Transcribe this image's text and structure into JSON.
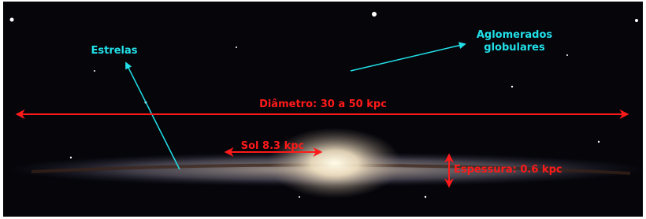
{
  "annotations": {
    "stars": "Estrelas",
    "clusters": [
      "Aglomerados",
      "globulares"
    ],
    "diameter": "Diâmetro: 30 a 50 kpc",
    "sun": "Sol 8.3 kpc",
    "thickness": "Espessura: 0.6 kpc"
  }
}
